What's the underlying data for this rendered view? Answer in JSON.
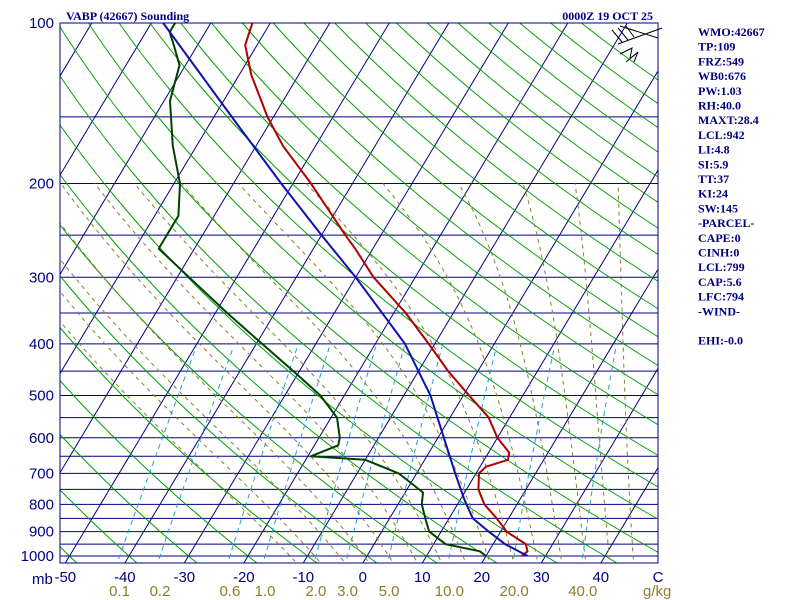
{
  "chart_data": {
    "type": "line",
    "title": "VABP (42667) Sounding",
    "valid_time": "0000Z 19 OCT 25",
    "pressure_unit": "mb",
    "mixing_ratio_unit": "g/kg",
    "pressure_ticks": [
      "100",
      "200",
      "300",
      "400",
      "500",
      "600",
      "700",
      "800",
      "900",
      "1000"
    ],
    "temperature_ticks": [
      "-50",
      "-40",
      "-30",
      "-20",
      "-10",
      "0",
      "10",
      "20",
      "30",
      "40",
      "C"
    ],
    "mixing_ratio_ticks": [
      "0.1",
      "0.2",
      "0.6",
      "1.0",
      "2.0",
      "3.0",
      "5.0",
      "10.0",
      "20.0",
      "40.0"
    ],
    "series": [
      {
        "key": "temperature",
        "color": "#b00000",
        "points": [
          {
            "p": 1000,
            "t": 26.0
          },
          {
            "p": 980,
            "t": 26.5
          },
          {
            "p": 950,
            "t": 25.5
          },
          {
            "p": 900,
            "t": 21.0
          },
          {
            "p": 850,
            "t": 18.0
          },
          {
            "p": 800,
            "t": 14.5
          },
          {
            "p": 750,
            "t": 12.0
          },
          {
            "p": 700,
            "t": 10.5
          },
          {
            "p": 680,
            "t": 11.0
          },
          {
            "p": 660,
            "t": 14.0
          },
          {
            "p": 640,
            "t": 13.5
          },
          {
            "p": 600,
            "t": 10.0
          },
          {
            "p": 550,
            "t": 6.5
          },
          {
            "p": 500,
            "t": 1.0
          },
          {
            "p": 450,
            "t": -5.0
          },
          {
            "p": 400,
            "t": -11.0
          },
          {
            "p": 350,
            "t": -18.0
          },
          {
            "p": 300,
            "t": -27.0
          },
          {
            "p": 265,
            "t": -33.0
          },
          {
            "p": 250,
            "t": -36.0
          },
          {
            "p": 200,
            "t": -47.0
          },
          {
            "p": 170,
            "t": -55.5
          },
          {
            "p": 150,
            "t": -61.0
          },
          {
            "p": 125,
            "t": -68.0
          },
          {
            "p": 110,
            "t": -72.0
          },
          {
            "p": 100,
            "t": -73.0
          }
        ]
      },
      {
        "key": "dewpoint",
        "color": "#004000",
        "points": [
          {
            "p": 1000,
            "t": 20.0
          },
          {
            "p": 980,
            "t": 18.5
          },
          {
            "p": 950,
            "t": 12.0
          },
          {
            "p": 900,
            "t": 8.0
          },
          {
            "p": 850,
            "t": 6.0
          },
          {
            "p": 800,
            "t": 4.0
          },
          {
            "p": 760,
            "t": 3.0
          },
          {
            "p": 700,
            "t": -3.0
          },
          {
            "p": 660,
            "t": -10.0
          },
          {
            "p": 650,
            "t": -19.5
          },
          {
            "p": 620,
            "t": -16.0
          },
          {
            "p": 600,
            "t": -16.5
          },
          {
            "p": 550,
            "t": -19.0
          },
          {
            "p": 500,
            "t": -24.0
          },
          {
            "p": 450,
            "t": -31.0
          },
          {
            "p": 400,
            "t": -39.0
          },
          {
            "p": 350,
            "t": -48.0
          },
          {
            "p": 300,
            "t": -58.0
          },
          {
            "p": 265,
            "t": -66.0
          },
          {
            "p": 230,
            "t": -66.0
          },
          {
            "p": 200,
            "t": -69.0
          },
          {
            "p": 170,
            "t": -74.0
          },
          {
            "p": 140,
            "t": -79.0
          },
          {
            "p": 120,
            "t": -81.0
          },
          {
            "p": 110,
            "t": -84.0
          },
          {
            "p": 104,
            "t": -86.0
          },
          {
            "p": 100,
            "t": -86.0
          }
        ]
      },
      {
        "key": "parcel",
        "color": "#1010b0",
        "points": [
          {
            "p": 1000,
            "t": 27.0
          },
          {
            "p": 950,
            "t": 22.0
          },
          {
            "p": 900,
            "t": 18.0
          },
          {
            "p": 850,
            "t": 14.0
          },
          {
            "p": 800,
            "t": 11.5
          },
          {
            "p": 780,
            "t": 10.5
          },
          {
            "p": 700,
            "t": 6.5
          },
          {
            "p": 600,
            "t": 1.0
          },
          {
            "p": 500,
            "t": -5.5
          },
          {
            "p": 400,
            "t": -15.0
          },
          {
            "p": 300,
            "t": -30.0
          },
          {
            "p": 250,
            "t": -40.0
          },
          {
            "p": 200,
            "t": -52.0
          },
          {
            "p": 150,
            "t": -67.0
          },
          {
            "p": 100,
            "t": -88.0
          }
        ]
      }
    ],
    "indices": [
      "WMO:42667",
      "TP:109",
      "FRZ:549",
      "WB0:676",
      "PW:1.03",
      "RH:40.0",
      "MAXT:28.4",
      "LCL:942",
      "LI:4.8",
      "SI:5.9",
      "TT:37",
      "KI:24",
      "SW:145",
      "-PARCEL-",
      "CAPE:0",
      "CINH:0",
      "LCL:799",
      "CAP:5.6",
      "LFC:794",
      "-WIND-",
      "",
      "EHI:-0.0"
    ],
    "grid": true,
    "colors": {
      "isobar": "#000080",
      "isotherm": "#000080",
      "dry_adiabat": "#00a000",
      "moist_adiabat": "#8b7d2b",
      "mixing_ratio": "#20a0d0",
      "frame": "#000080"
    }
  }
}
